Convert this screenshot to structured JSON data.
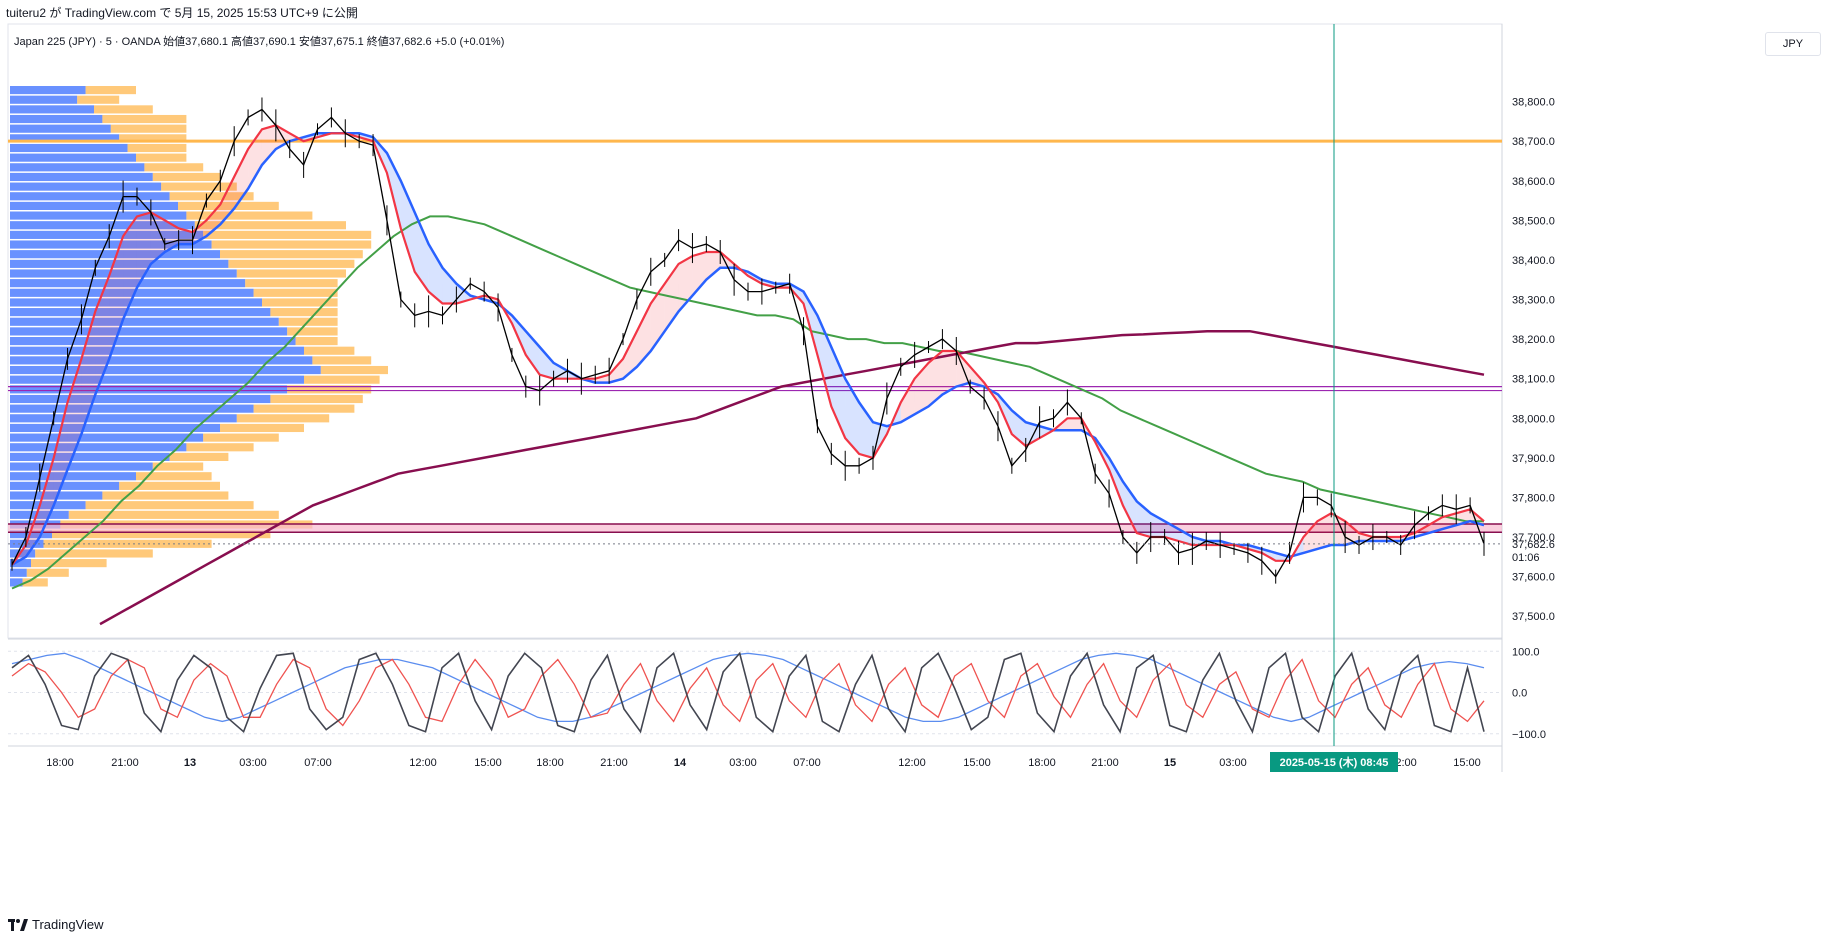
{
  "header": {
    "title": "tuiteru2 が TradingView.com で 5月 15, 2025 15:53 UTC+9 に公開",
    "legend": "Japan 225 (JPY) · 5 · OANDA  始値37,680.1  高値37,690.1  安値37,675.1  終値37,682.6  +5.0 (+0.01%)",
    "currency": "JPY"
  },
  "footer": {
    "brand": "TradingView"
  },
  "colors": {
    "candle": "#000000",
    "ema_fast": "#f23645",
    "ema_slow": "#2962ff",
    "ma_green": "#43a047",
    "ma_maroon": "#880e4f",
    "resistance": "#ffb74d",
    "support_purple": "#9c27b0",
    "vp_blue": "#2962ff",
    "vp_orange": "#ffb74d",
    "cursor": "#089981",
    "cross_fill": "#f23645"
  },
  "chart_data": [
    {
      "type": "line",
      "title": "Japan 225 (JPY) · 5 · OANDA",
      "ylim": [
        37450,
        38900
      ],
      "y_ticks": [
        "38,800.0",
        "38,700.0",
        "38,600.0",
        "38,500.0",
        "38,400.0",
        "38,300.0",
        "38,200.0",
        "38,100.0",
        "38,000.0",
        "37,900.0",
        "37,800.0",
        "37,700.0",
        "37,600.0",
        "37,500.0"
      ],
      "x_ticks": [
        "18:00",
        "21:00",
        "13",
        "03:00",
        "07:00",
        "12:00",
        "15:00",
        "18:00",
        "21:00",
        "14",
        "03:00",
        "07:00",
        "12:00",
        "15:00",
        "18:00",
        "21:00",
        "15",
        "03:00",
        "08:45",
        "12:00",
        "15:00"
      ],
      "last_price": "37,682.6",
      "countdown": "01:06",
      "cursor_time_label": "2025-05-15 (木)  08:45",
      "horizontal_levels": [
        {
          "name": "resistance",
          "value": 38700
        },
        {
          "name": "support-upper",
          "value": 38080
        },
        {
          "name": "support-lower",
          "value": 38070
        },
        {
          "name": "zone-top",
          "value": 37733
        },
        {
          "name": "zone-bottom",
          "value": 37712
        }
      ],
      "series": [
        {
          "name": "price",
          "values": [
            37630,
            37700,
            37850,
            38000,
            38150,
            38250,
            38380,
            38460,
            38560,
            38560,
            38520,
            38440,
            38450,
            38450,
            38550,
            38600,
            38700,
            38760,
            38780,
            38740,
            38680,
            38640,
            38730,
            38760,
            38720,
            38700,
            38690,
            38500,
            38300,
            38260,
            38270,
            38260,
            38300,
            38340,
            38320,
            38280,
            38160,
            38080,
            38070,
            38100,
            38120,
            38100,
            38110,
            38120,
            38200,
            38300,
            38370,
            38400,
            38450,
            38430,
            38440,
            38420,
            38350,
            38320,
            38320,
            38330,
            38340,
            38220,
            37980,
            37910,
            37880,
            37880,
            37900,
            38050,
            38130,
            38160,
            38180,
            38200,
            38170,
            38080,
            38050,
            37980,
            37880,
            37920,
            37990,
            38000,
            38040,
            38000,
            37860,
            37810,
            37700,
            37660,
            37700,
            37700,
            37660,
            37670,
            37690,
            37680,
            37670,
            37660,
            37640,
            37600,
            37660,
            37800,
            37800,
            37780,
            37700,
            37680,
            37700,
            37700,
            37680,
            37730,
            37760,
            37780,
            37770,
            37780,
            37682.6
          ]
        },
        {
          "name": "ema-fast",
          "values": [
            37630,
            37680,
            37780,
            37900,
            38040,
            38150,
            38270,
            38360,
            38460,
            38510,
            38520,
            38500,
            38480,
            38470,
            38500,
            38540,
            38610,
            38680,
            38730,
            38740,
            38720,
            38700,
            38710,
            38720,
            38720,
            38710,
            38700,
            38620,
            38480,
            38370,
            38320,
            38290,
            38290,
            38300,
            38310,
            38300,
            38240,
            38160,
            38110,
            38100,
            38100,
            38100,
            38100,
            38110,
            38150,
            38220,
            38290,
            38340,
            38390,
            38410,
            38420,
            38420,
            38390,
            38360,
            38340,
            38330,
            38330,
            38290,
            38160,
            38030,
            37950,
            37910,
            37900,
            37960,
            38040,
            38100,
            38140,
            38170,
            38170,
            38130,
            38090,
            38040,
            37960,
            37930,
            37950,
            37970,
            38000,
            38000,
            37940,
            37870,
            37780,
            37710,
            37700,
            37700,
            37690,
            37680,
            37680,
            37680,
            37680,
            37670,
            37660,
            37640,
            37640,
            37700,
            37740,
            37760,
            37740,
            37710,
            37700,
            37700,
            37700,
            37710,
            37730,
            37750,
            37760,
            37770,
            37740
          ]
        },
        {
          "name": "ema-slow",
          "values": [
            37630,
            37650,
            37700,
            37780,
            37870,
            37960,
            38060,
            38150,
            38250,
            38330,
            38390,
            38420,
            38440,
            38440,
            38460,
            38490,
            38530,
            38580,
            38640,
            38680,
            38700,
            38710,
            38720,
            38720,
            38720,
            38720,
            38710,
            38670,
            38600,
            38520,
            38440,
            38380,
            38340,
            38310,
            38300,
            38290,
            38260,
            38220,
            38180,
            38140,
            38120,
            38100,
            38090,
            38090,
            38100,
            38130,
            38170,
            38220,
            38270,
            38310,
            38350,
            38380,
            38380,
            38370,
            38350,
            38340,
            38340,
            38320,
            38260,
            38180,
            38100,
            38040,
            37990,
            37980,
            37990,
            38010,
            38030,
            38060,
            38080,
            38090,
            38080,
            38060,
            38020,
            37990,
            37980,
            37970,
            37970,
            37970,
            37950,
            37900,
            37840,
            37790,
            37760,
            37740,
            37720,
            37700,
            37690,
            37690,
            37680,
            37680,
            37670,
            37660,
            37650,
            37660,
            37670,
            37680,
            37680,
            37690,
            37690,
            37690,
            37690,
            37700,
            37710,
            37720,
            37730,
            37740,
            37730
          ]
        },
        {
          "name": "ma-green",
          "x_index_start": 0,
          "values": [
            37570,
            37590,
            37620,
            37660,
            37700,
            37740,
            37790,
            37830,
            37880,
            37920,
            37970,
            38010,
            38050,
            38090,
            38140,
            38180,
            38230,
            38280,
            38330,
            38380,
            38420,
            38460,
            38490,
            38510,
            38510,
            38500,
            38490,
            38470,
            38450,
            38430,
            38410,
            38390,
            38370,
            38350,
            38330,
            38320,
            38310,
            38300,
            38290,
            38280,
            38270,
            38260,
            38260,
            38250,
            38220,
            38210,
            38200,
            38200,
            38190,
            38190,
            38180,
            38170,
            38170,
            38160,
            38150,
            38140,
            38130,
            38110,
            38090,
            38070,
            38050,
            38020,
            38000,
            37980,
            37960,
            37940,
            37920,
            37900,
            37880,
            37860,
            37850,
            37840,
            37820,
            37810,
            37800,
            37790,
            37780,
            37770,
            37760,
            37750,
            37740,
            37740
          ]
        },
        {
          "name": "ma-maroon",
          "values": [
            37480,
            37510,
            37540,
            37570,
            37600,
            37630,
            37660,
            37690,
            37720,
            37750,
            37780,
            37800,
            37820,
            37840,
            37860,
            37870,
            37880,
            37890,
            37900,
            37910,
            37920,
            37930,
            37940,
            37950,
            37960,
            37970,
            37980,
            37990,
            38000,
            38020,
            38040,
            38060,
            38080,
            38090,
            38100,
            38110,
            38120,
            38130,
            38140,
            38150,
            38160,
            38170,
            38180,
            38190,
            38190,
            38195,
            38200,
            38205,
            38210,
            38212,
            38215,
            38217,
            38220,
            38220,
            38220,
            38210,
            38200,
            38190,
            38180,
            38170,
            38160,
            38150,
            38140,
            38130,
            38120,
            38110
          ]
        },
        {
          "name": "stoch-k",
          "values": [
            60,
            90,
            20,
            -80,
            -90,
            40,
            95,
            80,
            -50,
            -95,
            30,
            90,
            60,
            -60,
            -95,
            10,
            90,
            95,
            -40,
            -90,
            -60,
            80,
            95,
            20,
            -80,
            -95,
            60,
            95,
            -20,
            -90,
            40,
            95,
            60,
            -80,
            -95,
            30,
            90,
            -40,
            -95,
            60,
            95,
            -30,
            -90,
            50,
            95,
            -60,
            -95,
            40,
            90,
            -70,
            -95,
            20,
            90,
            -40,
            -95,
            60,
            95,
            10,
            -90,
            -60,
            80,
            95,
            -50,
            -95,
            40,
            95,
            -30,
            -95,
            60,
            90,
            -80,
            -95,
            30,
            95,
            -20,
            -95,
            60,
            95,
            -60,
            -95,
            40,
            95,
            -40,
            -90,
            50,
            90,
            -80,
            -95,
            60,
            -95
          ]
        },
        {
          "name": "stoch-d",
          "values": [
            40,
            70,
            50,
            0,
            -60,
            -40,
            40,
            80,
            60,
            -40,
            -60,
            30,
            70,
            40,
            -60,
            -60,
            20,
            80,
            60,
            -40,
            -80,
            -20,
            60,
            80,
            20,
            -60,
            -70,
            20,
            80,
            30,
            -60,
            -40,
            40,
            80,
            20,
            -60,
            -50,
            20,
            70,
            -20,
            -70,
            10,
            60,
            -30,
            -70,
            30,
            70,
            -20,
            -60,
            30,
            70,
            -30,
            -70,
            20,
            60,
            -30,
            -60,
            40,
            70,
            -20,
            -60,
            40,
            70,
            -10,
            -60,
            20,
            70,
            -20,
            -60,
            30,
            70,
            -30,
            -60,
            20,
            50,
            -40,
            -60,
            30,
            80,
            -20,
            -60,
            20,
            60,
            -30,
            -60,
            20,
            70,
            -40,
            -70,
            -20
          ]
        },
        {
          "name": "stoch-slow",
          "values": [
            70,
            80,
            90,
            95,
            80,
            60,
            40,
            20,
            0,
            -20,
            -40,
            -60,
            -70,
            -60,
            -40,
            -20,
            0,
            20,
            40,
            60,
            70,
            80,
            80,
            70,
            60,
            40,
            20,
            0,
            -20,
            -40,
            -60,
            -70,
            -70,
            -60,
            -40,
            -20,
            0,
            20,
            40,
            60,
            80,
            90,
            95,
            90,
            80,
            60,
            40,
            20,
            0,
            -20,
            -40,
            -60,
            -70,
            -70,
            -60,
            -40,
            -20,
            0,
            20,
            40,
            60,
            80,
            90,
            95,
            90,
            80,
            60,
            40,
            20,
            0,
            -20,
            -40,
            -60,
            -70,
            -60,
            -40,
            -20,
            0,
            20,
            40,
            60,
            70,
            75,
            70,
            60
          ]
        }
      ]
    },
    {
      "type": "line",
      "title": "",
      "ylim": [
        -120,
        120
      ],
      "y_ticks": [
        "100.0",
        "0.0",
        "−100.0"
      ]
    }
  ],
  "volume_profile": {
    "rows": 52,
    "blue": [
      18,
      16,
      20,
      22,
      24,
      26,
      28,
      30,
      32,
      34,
      36,
      38,
      40,
      42,
      44,
      46,
      48,
      50,
      52,
      54,
      56,
      58,
      60,
      62,
      64,
      66,
      68,
      70,
      72,
      74,
      70,
      66,
      62,
      58,
      54,
      50,
      46,
      42,
      38,
      34,
      30,
      26,
      22,
      18,
      14,
      12,
      10,
      8,
      6,
      5,
      4,
      3
    ],
    "orange": [
      12,
      10,
      14,
      20,
      18,
      16,
      14,
      12,
      14,
      16,
      18,
      20,
      24,
      30,
      36,
      40,
      38,
      34,
      30,
      26,
      22,
      20,
      18,
      16,
      14,
      12,
      10,
      12,
      14,
      16,
      18,
      20,
      22,
      24,
      22,
      20,
      18,
      16,
      14,
      12,
      18,
      24,
      30,
      40,
      50,
      60,
      52,
      40,
      28,
      18,
      10,
      6
    ]
  }
}
